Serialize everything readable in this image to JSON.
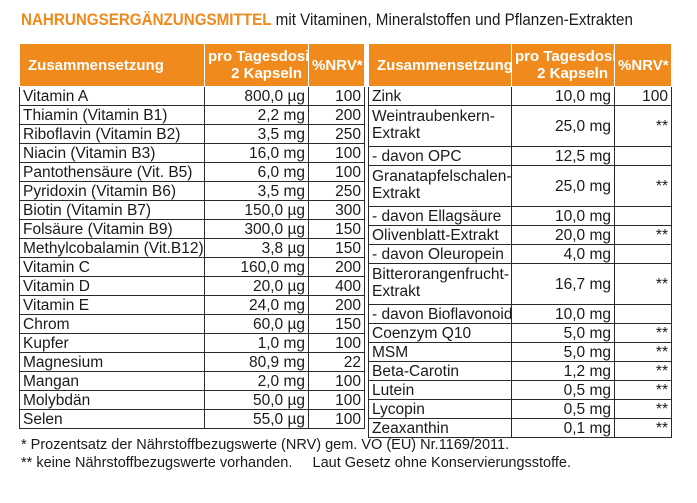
{
  "title": {
    "strong": "NAHRUNGSERGÄNZUNGSMITTEL",
    "rest": " mit Vitaminen, Mineralstoffen und Pflanzen-Extrakten"
  },
  "headers": {
    "name": "Zusammensetzung",
    "dose_line1": "pro Tagesdosis",
    "dose_line2": "2 Kapseln",
    "nrv": "%NRV*"
  },
  "left_rows": [
    {
      "name": "Vitamin A",
      "dose": "800,0 µg",
      "nrv": "100"
    },
    {
      "name": "Thiamin (Vitamin B1)",
      "dose": "2,2 mg",
      "nrv": "200"
    },
    {
      "name": "Riboflavin (Vitamin B2)",
      "dose": "3,5 mg",
      "nrv": "250"
    },
    {
      "name": "Niacin (Vitamin B3)",
      "dose": "16,0 mg",
      "nrv": "100"
    },
    {
      "name": "Pantothensäure (Vit. B5)",
      "dose": "6,0 mg",
      "nrv": "100"
    },
    {
      "name": "Pyridoxin (Vitamin B6)",
      "dose": "3,5 mg",
      "nrv": "250"
    },
    {
      "name": "Biotin (Vitamin B7)",
      "dose": "150,0 µg",
      "nrv": "300"
    },
    {
      "name": "Folsäure (Vitamin B9)",
      "dose": "300,0 µg",
      "nrv": "150"
    },
    {
      "name": "Methylcobalamin (Vit.B12)",
      "dose": "3,8 µg",
      "nrv": "150"
    },
    {
      "name": "Vitamin C",
      "dose": "160,0 mg",
      "nrv": "200"
    },
    {
      "name": "Vitamin D",
      "dose": "20,0 µg",
      "nrv": "400"
    },
    {
      "name": "Vitamin E",
      "dose": "24,0 mg",
      "nrv": "200"
    },
    {
      "name": "Chrom",
      "dose": "60,0 µg",
      "nrv": "150"
    },
    {
      "name": "Kupfer",
      "dose": "1,0 mg",
      "nrv": "100"
    },
    {
      "name": "Magnesium",
      "dose": "80,9 mg",
      "nrv": "22"
    },
    {
      "name": "Mangan",
      "dose": "2,0 mg",
      "nrv": "100"
    },
    {
      "name": "Molybdän",
      "dose": "50,0 µg",
      "nrv": "100"
    },
    {
      "name": "Selen",
      "dose": "55,0 µg",
      "nrv": "100"
    }
  ],
  "right_rows": [
    {
      "name": "Zink",
      "dose": "10,0 mg",
      "nrv": "100"
    },
    {
      "name": "Weintraubenkern-Extrakt",
      "dose": "25,0 mg",
      "nrv": "**"
    },
    {
      "name": "- davon OPC",
      "dose": "12,5 mg",
      "nrv": ""
    },
    {
      "name": "Granatapfelschalen-Extrakt",
      "dose": "25,0 mg",
      "nrv": "**"
    },
    {
      "name": "- davon Ellagsäure",
      "dose": "10,0 mg",
      "nrv": ""
    },
    {
      "name": "Olivenblatt-Extrakt",
      "dose": "20,0 mg",
      "nrv": "**"
    },
    {
      "name": "- davon Oleuropein",
      "dose": "4,0 mg",
      "nrv": ""
    },
    {
      "name": "Bitterorangenfrucht-Extrakt",
      "dose": "16,7 mg",
      "nrv": "**"
    },
    {
      "name": "- davon Bioflavonoide",
      "dose": "10,0 mg",
      "nrv": ""
    },
    {
      "name": "Coenzym Q10",
      "dose": "5,0 mg",
      "nrv": "**"
    },
    {
      "name": "MSM",
      "dose": "5,0 mg",
      "nrv": "**"
    },
    {
      "name": "Beta-Carotin",
      "dose": "1,2 mg",
      "nrv": "**"
    },
    {
      "name": "Lutein",
      "dose": "0,5 mg",
      "nrv": "**"
    },
    {
      "name": "Lycopin",
      "dose": "0,5 mg",
      "nrv": "**"
    },
    {
      "name": "Zeaxanthin",
      "dose": "0,1 mg",
      "nrv": "**"
    }
  ],
  "footnotes": {
    "line1": "* Prozentsatz der Nährstoffbezugswerte (NRV) gem. VO (EU) Nr.1169/2011.",
    "line2_a": "** keine Nährstoffbezugswerte vorhanden.",
    "line2_b": "Laut Gesetz ohne Konservierungsstoffe."
  },
  "colors": {
    "accent": "#f08a1d",
    "text": "#1a1a1a"
  }
}
